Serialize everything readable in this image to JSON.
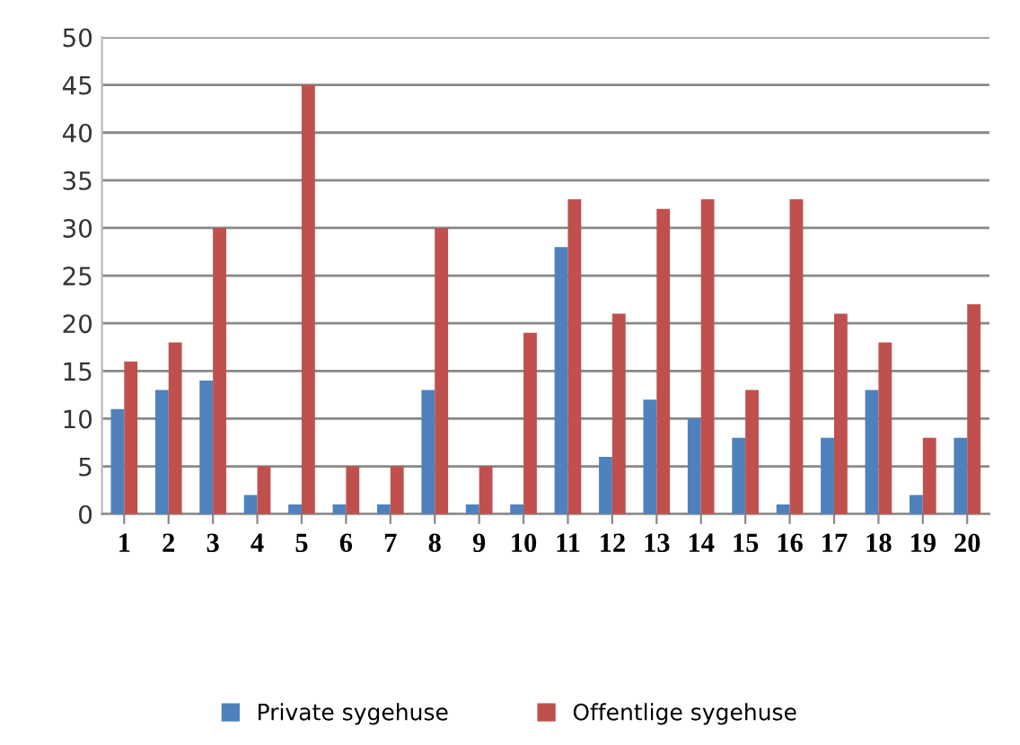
{
  "chart_data": {
    "type": "bar",
    "categories": [
      "1",
      "2",
      "3",
      "4",
      "5",
      "6",
      "7",
      "8",
      "9",
      "10",
      "11",
      "12",
      "13",
      "14",
      "15",
      "16",
      "17",
      "18",
      "19",
      "20"
    ],
    "series": [
      {
        "name": "Private sygehuse",
        "color": "#4f81bd",
        "values": [
          11,
          13,
          14,
          2,
          1,
          1,
          1,
          13,
          1,
          1,
          28,
          6,
          12,
          10,
          8,
          1,
          8,
          13,
          2,
          8
        ]
      },
      {
        "name": "Offentlige sygehuse",
        "color": "#c0504d",
        "values": [
          16,
          18,
          30,
          5,
          45,
          5,
          5,
          30,
          5,
          19,
          33,
          21,
          32,
          33,
          13,
          33,
          21,
          18,
          8,
          22
        ]
      }
    ],
    "ylim": [
      0,
      50
    ],
    "yticks": [
      0,
      5,
      10,
      15,
      20,
      25,
      30,
      35,
      40,
      45,
      50
    ],
    "grid": "y",
    "legend": "bottom"
  }
}
